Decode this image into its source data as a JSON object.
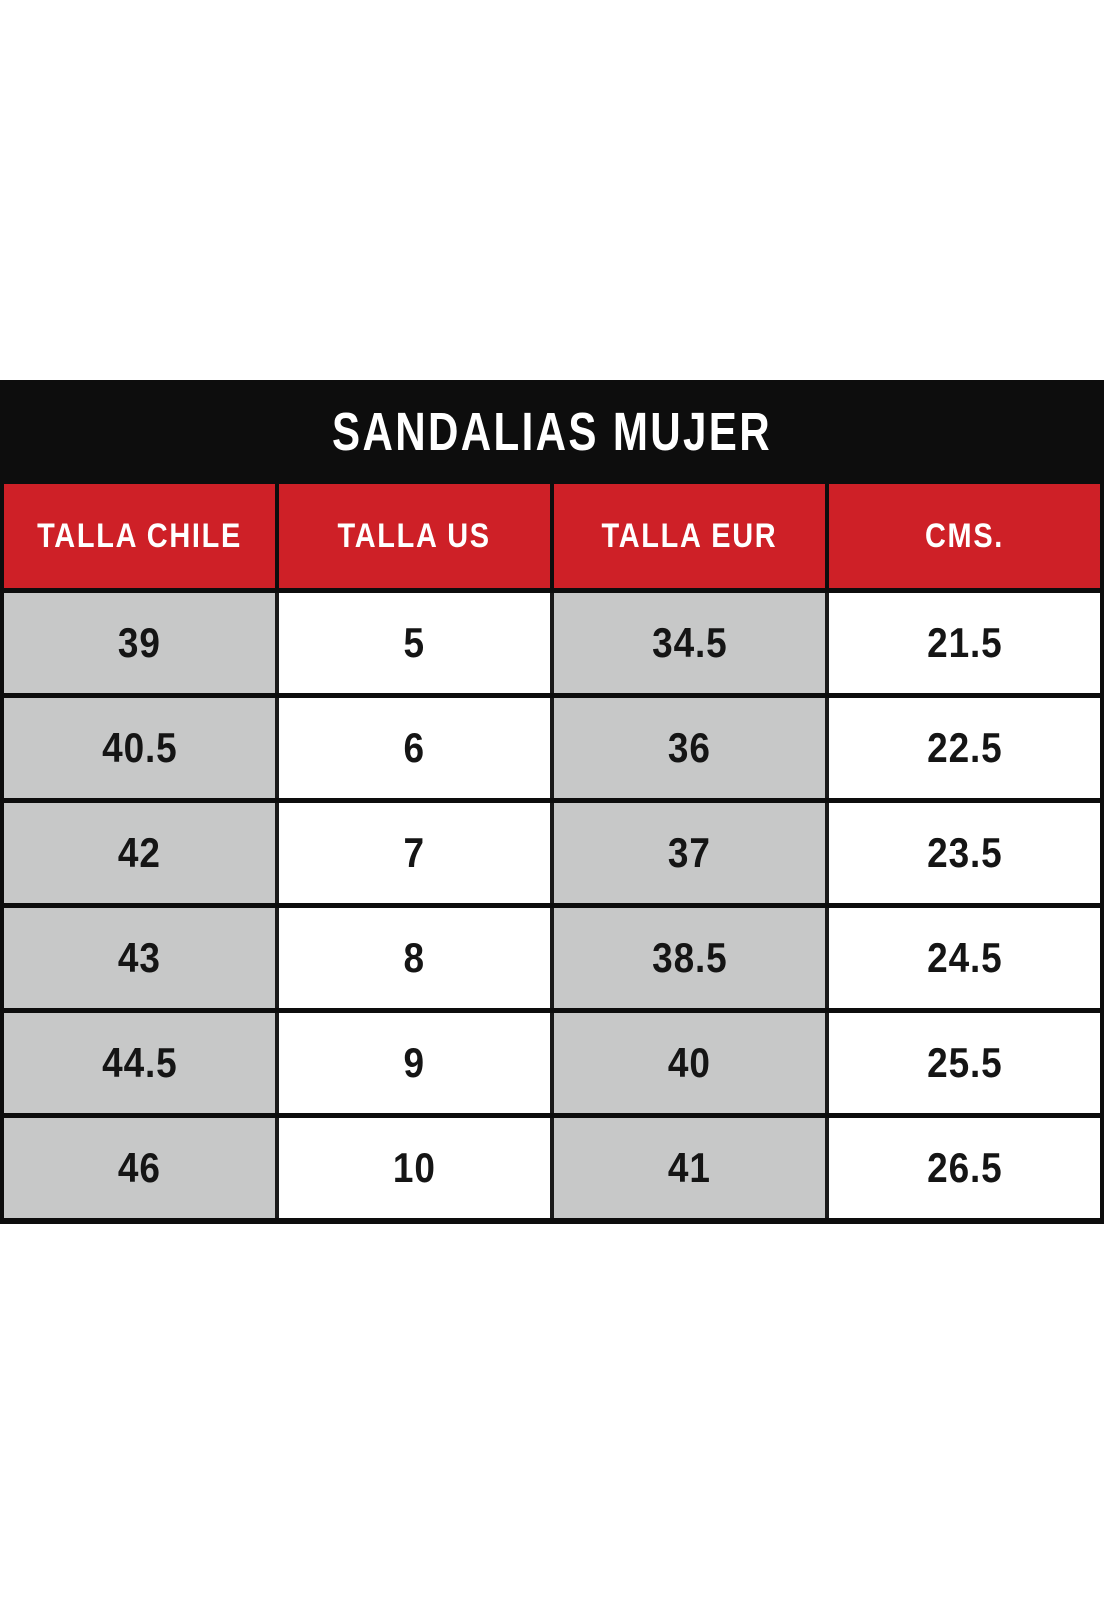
{
  "title": "SANDALIAS MUJER",
  "table": {
    "headers": [
      "TALLA CHILE",
      "TALLA US",
      "TALLA EUR",
      "CMS."
    ],
    "rows": [
      [
        "39",
        "5",
        "34.5",
        "21.5"
      ],
      [
        "40.5",
        "6",
        "36",
        "22.5"
      ],
      [
        "42",
        "7",
        "37",
        "23.5"
      ],
      [
        "43",
        "8",
        "38.5",
        "24.5"
      ],
      [
        "44.5",
        "9",
        "40",
        "25.5"
      ],
      [
        "46",
        "10",
        "41",
        "26.5"
      ]
    ]
  },
  "chart_data": {
    "type": "table",
    "title": "SANDALIAS MUJER",
    "columns": [
      "TALLA CHILE",
      "TALLA US",
      "TALLA EUR",
      "CMS."
    ],
    "rows": [
      [
        39,
        5,
        34.5,
        21.5
      ],
      [
        40.5,
        6,
        36,
        22.5
      ],
      [
        42,
        7,
        37,
        23.5
      ],
      [
        43,
        8,
        38.5,
        24.5
      ],
      [
        44.5,
        9,
        40,
        25.5
      ],
      [
        46,
        10,
        41,
        26.5
      ]
    ],
    "layout_hints": {
      "striped_columns": "columns 1 and 3 gray, columns 2 and 4 white",
      "header_style": "red background, white bold condensed text",
      "title_style": "black bar, white bold condensed text"
    }
  },
  "colors": {
    "title_bar_bg": "#0d0d0d",
    "header_bg": "#ce2027",
    "gray_cell_bg": "#c7c8c8",
    "white_cell_bg": "#ffffff",
    "grid_line": "#141414",
    "text_dark": "#151515",
    "text_light": "#ffffff"
  }
}
